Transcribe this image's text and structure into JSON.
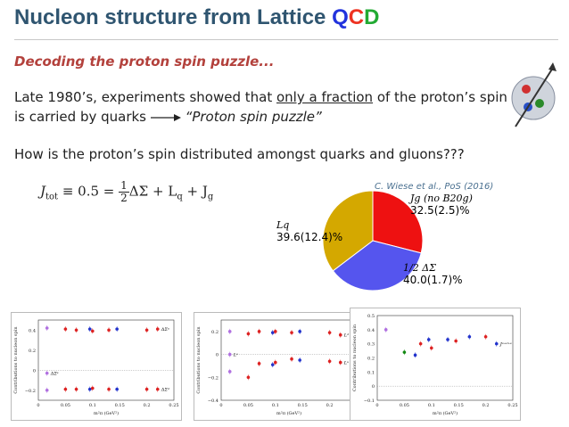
{
  "title": {
    "main": "Nucleon structure from Lattice ",
    "q": "Q",
    "c": "C",
    "d": "D"
  },
  "subtitle": "Decoding the proton spin puzzle...",
  "para": {
    "l1_pre": "Late 1980’s, experiments showed that ",
    "l1_ul": "only a fraction",
    "l1_post": " of the proton’s spin",
    "l2_pre": "is carried by quarks ",
    "l2_post": "“Proton spin puzzle”",
    "l3": "How is the proton’s spin distributed amongst quarks and gluons???"
  },
  "equation": {
    "lhs": "J",
    "lhs_sub": "tot",
    "mid": " ≡ 0.5 = ",
    "num": "1",
    "den": "2",
    "rhs": "ΔΣ + L",
    "rhs_sub1": "q",
    "rhs2": " + J",
    "rhs_sub2": "g"
  },
  "citation": "C. Wiese et al., PoS (2016)",
  "chart_data": [
    {
      "type": "pie",
      "title": "",
      "labels": [
        "Jg (no B20g)",
        "1/2 ΔΣ",
        "Lq"
      ],
      "values": [
        32.5,
        40.0,
        39.6
      ],
      "value_labels": [
        "32.5(2.5)%",
        "40.0(1.7)%",
        "39.6(12.4)%"
      ],
      "colors": [
        "#ee1111",
        "#5555ee",
        "#d4a800"
      ]
    },
    {
      "type": "scatter",
      "xlabel": "m²π (GeV²)",
      "ylabel": "Contributions to nucleon spin",
      "xlim": [
        0,
        0.25
      ],
      "ylim": [
        -0.3,
        0.5
      ],
      "xticks": [
        "0",
        "0.05",
        "0.1",
        "0.15",
        "0.2",
        "0.25"
      ],
      "yticks": [
        "−0.2",
        "0",
        "0.2",
        "0.4"
      ],
      "annotations": [
        "ΔΣᵘ",
        "ΔΣᵈ",
        "ΔΣˢ"
      ],
      "series": [
        {
          "name": "ΔΣᵘ",
          "x": [
            0.016,
            0.05,
            0.07,
            0.095,
            0.1,
            0.13,
            0.145,
            0.2,
            0.22
          ],
          "y": [
            0.42,
            0.41,
            0.4,
            0.41,
            0.39,
            0.4,
            0.41,
            0.4,
            0.41
          ]
        },
        {
          "name": "ΔΣᵈ",
          "x": [
            0.016,
            0.05,
            0.07,
            0.095,
            0.1,
            0.13,
            0.145,
            0.2,
            0.22
          ],
          "y": [
            -0.2,
            -0.19,
            -0.19,
            -0.19,
            -0.18,
            -0.19,
            -0.19,
            -0.19,
            -0.19
          ]
        },
        {
          "name": "ΔΣˢ",
          "x": [
            0.016
          ],
          "y": [
            -0.03
          ]
        }
      ]
    },
    {
      "type": "scatter",
      "xlabel": "m²π (GeV²)",
      "ylabel": "Contributions to nucleon spin",
      "xlim": [
        0,
        0.25
      ],
      "ylim": [
        -0.4,
        0.3
      ],
      "xticks": [
        "0",
        "0.05",
        "0.1",
        "0.15",
        "0.2",
        "0.25"
      ],
      "yticks": [
        "−0.4",
        "−0.2",
        "0",
        "0.2"
      ],
      "annotations": [
        "Lᵘ",
        "Lᵈ",
        "Lˢ"
      ],
      "series": [
        {
          "name": "Lᵈ",
          "x": [
            0.016,
            0.05,
            0.07,
            0.095,
            0.1,
            0.13,
            0.145,
            0.2,
            0.22
          ],
          "y": [
            0.2,
            0.18,
            0.2,
            0.19,
            0.2,
            0.19,
            0.2,
            0.19,
            0.17
          ]
        },
        {
          "name": "Lᵘ",
          "x": [
            0.016,
            0.05,
            0.07,
            0.095,
            0.1,
            0.13,
            0.145,
            0.2,
            0.22
          ],
          "y": [
            -0.15,
            -0.2,
            -0.08,
            -0.09,
            -0.07,
            -0.04,
            -0.05,
            -0.06,
            -0.07
          ]
        },
        {
          "name": "Lˢ",
          "x": [
            0.016
          ],
          "y": [
            0.0
          ]
        }
      ]
    },
    {
      "type": "scatter",
      "xlabel": "m²π (GeV²)",
      "ylabel": "Contributions to nucleon spin",
      "xlim": [
        0,
        0.25
      ],
      "ylim": [
        -0.1,
        0.5
      ],
      "xticks": [
        "0",
        "0.05",
        "0.1",
        "0.15",
        "0.2",
        "0.25"
      ],
      "yticks": [
        "−0.1",
        "0",
        "0.1",
        "0.2",
        "0.3",
        "0.4",
        "0.5"
      ],
      "annotations": [
        "Jᵘ⁺ᵈ⁺ˢ",
        "Jᵍ"
      ],
      "series": [
        {
          "name": "Jᵘ⁺ᵈ⁺ˢ",
          "x": [
            0.016,
            0.05,
            0.07,
            0.08,
            0.095,
            0.1,
            0.13,
            0.145,
            0.17,
            0.2,
            0.22
          ],
          "y": [
            0.4,
            0.24,
            0.22,
            0.3,
            0.33,
            0.27,
            0.33,
            0.32,
            0.35,
            0.35,
            0.3
          ]
        }
      ]
    }
  ]
}
